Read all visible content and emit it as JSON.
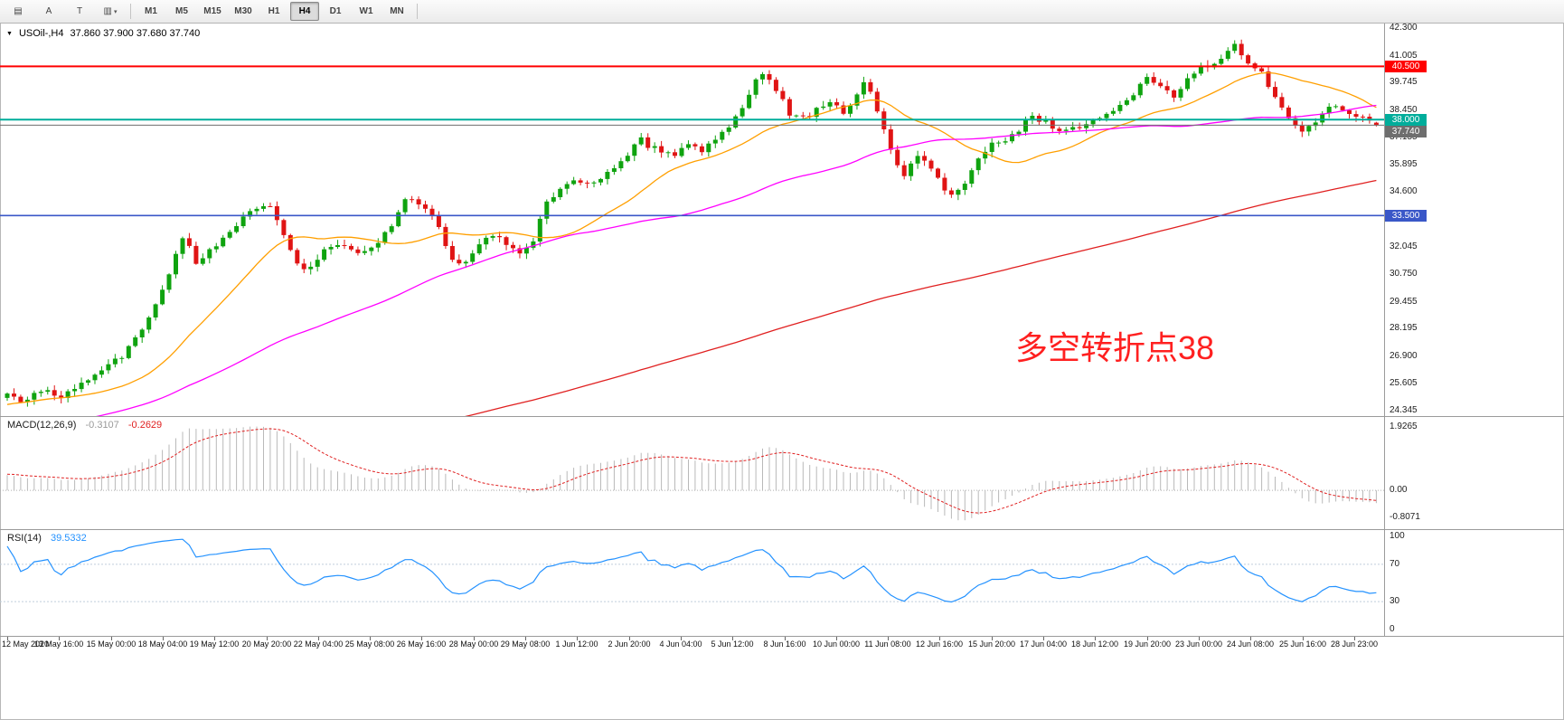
{
  "toolbar": {
    "left_buttons": [
      {
        "name": "chart-shift-icon-button",
        "glyph": "▤"
      },
      {
        "name": "auto-scroll-button",
        "label": "A"
      },
      {
        "name": "text-tool-button",
        "label": "T"
      },
      {
        "name": "chart-style-dropdown-button",
        "glyph": "▥",
        "arrow": "▾"
      }
    ],
    "timeframes": [
      {
        "label": "M1"
      },
      {
        "label": "M5"
      },
      {
        "label": "M15"
      },
      {
        "label": "M30"
      },
      {
        "label": "H1"
      },
      {
        "label": "H4",
        "active": true
      },
      {
        "label": "D1"
      },
      {
        "label": "W1"
      },
      {
        "label": "MN"
      }
    ]
  },
  "chart": {
    "collapse_glyph": "▼",
    "symbol_label": "USOil-,H4",
    "quote_text": "37.860 37.900 37.680 37.740",
    "annotation": {
      "text": "多空转折点38",
      "color": "#ff2020"
    },
    "hlines": [
      {
        "price": 40.5,
        "label": "40.500",
        "color": "#ff0000",
        "width": 2
      },
      {
        "price": 38.0,
        "label": "38.000",
        "color": "#00ad9b",
        "width": 2
      },
      {
        "price": 33.5,
        "label": "33.500",
        "color": "#3a57c8",
        "width": 1.6
      }
    ],
    "current_price": {
      "price": 37.74,
      "label": "37.740",
      "color": "#6e6e6e"
    },
    "y_axis": {
      "labels": [
        "42.300",
        "41.005",
        "39.745",
        "38.450",
        "37.155",
        "35.895",
        "34.600",
        "33.340",
        "32.045",
        "30.750",
        "29.455",
        "28.195",
        "26.900",
        "25.605",
        "24.345"
      ]
    },
    "x_axis": {
      "labels": [
        "12 May 2020",
        "13 May 16:00",
        "15 May 00:00",
        "18 May 04:00",
        "19 May 12:00",
        "20 May 20:00",
        "22 May 04:00",
        "25 May 08:00",
        "26 May 16:00",
        "28 May 00:00",
        "29 May 08:00",
        "1 Jun 12:00",
        "2 Jun 20:00",
        "4 Jun 04:00",
        "5 Jun 12:00",
        "8 Jun 16:00",
        "10 Jun 00:00",
        "11 Jun 08:00",
        "12 Jun 16:00",
        "15 Jun 20:00",
        "17 Jun 04:00",
        "18 Jun 12:00",
        "19 Jun 20:00",
        "23 Jun 00:00",
        "24 Jun 08:00",
        "25 Jun 16:00",
        "28 Jun 23:00"
      ]
    },
    "colors": {
      "up": "#0fa30f",
      "down": "#e01414",
      "hist": "#b9b9b9",
      "signal": "#e02020",
      "rsi": "#2492ff"
    }
  },
  "indicators": {
    "macd": {
      "label": "MACD(12,26,9)",
      "value_main": "-0.3107",
      "value_signal": "-0.2629",
      "axis_labels": [
        "1.9265",
        "0.00",
        "-0.8071"
      ],
      "params": {
        "fast": 12,
        "slow": 26,
        "signal": 9
      }
    },
    "rsi": {
      "label": "RSI(14)",
      "value": "39.5332",
      "period": 14,
      "axis_labels": [
        "100",
        "70",
        "30",
        "0"
      ],
      "levels": [
        70,
        30
      ]
    }
  },
  "chart_data": {
    "type": "candlestick",
    "symbol": "USOil-",
    "timeframe": "H4",
    "title": "USOil-,H4 37.860 37.900 37.680 37.740",
    "ylim": [
      24.345,
      42.3
    ],
    "visible_bars": 204,
    "prehistory_bars": 220,
    "last_bar": {
      "open": 37.86,
      "high": 37.9,
      "low": 37.68,
      "close": 37.74
    },
    "close_anchors": [
      [
        0,
        25.1
      ],
      [
        2,
        24.65
      ],
      [
        5,
        25.3
      ],
      [
        8,
        25.05
      ],
      [
        11,
        25.6
      ],
      [
        14,
        26.3
      ],
      [
        17,
        26.9
      ],
      [
        20,
        28.2
      ],
      [
        23,
        29.9
      ],
      [
        25,
        31.6
      ],
      [
        26,
        32.55
      ],
      [
        28,
        31.35
      ],
      [
        30,
        31.85
      ],
      [
        33,
        32.7
      ],
      [
        35,
        33.45
      ],
      [
        37,
        33.85
      ],
      [
        39,
        33.95
      ],
      [
        41,
        32.6
      ],
      [
        43,
        31.15
      ],
      [
        45,
        31.0
      ],
      [
        47,
        31.9
      ],
      [
        49,
        32.1
      ],
      [
        52,
        31.65
      ],
      [
        55,
        32.25
      ],
      [
        57,
        33.1
      ],
      [
        59,
        34.25
      ],
      [
        61,
        34.05
      ],
      [
        63,
        33.6
      ],
      [
        65,
        32.2
      ],
      [
        66,
        31.4
      ],
      [
        68,
        31.25
      ],
      [
        70,
        32.2
      ],
      [
        72,
        32.65
      ],
      [
        74,
        32.1
      ],
      [
        76,
        31.75
      ],
      [
        78,
        32.3
      ],
      [
        79,
        33.3
      ],
      [
        80,
        34.1
      ],
      [
        82,
        34.8
      ],
      [
        84,
        35.15
      ],
      [
        86,
        34.9
      ],
      [
        88,
        35.3
      ],
      [
        90,
        35.85
      ],
      [
        92,
        36.25
      ],
      [
        94,
        37.25
      ],
      [
        95,
        36.8
      ],
      [
        97,
        36.5
      ],
      [
        99,
        36.3
      ],
      [
        101,
        36.85
      ],
      [
        103,
        36.6
      ],
      [
        105,
        37.15
      ],
      [
        107,
        37.6
      ],
      [
        109,
        38.5
      ],
      [
        111,
        39.85
      ],
      [
        112,
        40.25
      ],
      [
        113,
        39.9
      ],
      [
        115,
        38.9
      ],
      [
        116,
        38.25
      ],
      [
        118,
        38.05
      ],
      [
        120,
        38.45
      ],
      [
        122,
        38.85
      ],
      [
        124,
        38.35
      ],
      [
        126,
        39.1
      ],
      [
        127,
        39.75
      ],
      [
        128,
        39.3
      ],
      [
        129,
        38.5
      ],
      [
        131,
        36.7
      ],
      [
        132,
        35.9
      ],
      [
        133,
        35.3
      ],
      [
        135,
        36.35
      ],
      [
        137,
        35.7
      ],
      [
        139,
        34.75
      ],
      [
        140,
        34.35
      ],
      [
        142,
        35.05
      ],
      [
        144,
        36.15
      ],
      [
        146,
        36.85
      ],
      [
        148,
        37.1
      ],
      [
        150,
        37.55
      ],
      [
        152,
        38.2
      ],
      [
        154,
        37.85
      ],
      [
        157,
        37.4
      ],
      [
        160,
        37.85
      ],
      [
        163,
        38.25
      ],
      [
        165,
        38.75
      ],
      [
        167,
        39.25
      ],
      [
        169,
        39.9
      ],
      [
        171,
        39.45
      ],
      [
        173,
        39.15
      ],
      [
        175,
        39.95
      ],
      [
        177,
        40.45
      ],
      [
        179,
        40.7
      ],
      [
        181,
        41.25
      ],
      [
        182,
        41.5
      ],
      [
        183,
        41.1
      ],
      [
        184,
        40.55
      ],
      [
        186,
        40.3
      ],
      [
        188,
        39.0
      ],
      [
        190,
        37.95
      ],
      [
        192,
        37.35
      ],
      [
        194,
        37.9
      ],
      [
        196,
        38.65
      ],
      [
        198,
        38.45
      ],
      [
        200,
        38.1
      ],
      [
        202,
        37.95
      ],
      [
        203,
        37.74
      ]
    ],
    "prehistory_anchors": [
      [
        0,
        19.0
      ],
      [
        30,
        16.0
      ],
      [
        60,
        14.5
      ],
      [
        90,
        16.5
      ],
      [
        120,
        18.5
      ],
      [
        150,
        20.5
      ],
      [
        180,
        22.5
      ],
      [
        200,
        24.0
      ],
      [
        212,
        24.8
      ],
      [
        219,
        25.0
      ]
    ],
    "overlays": [
      {
        "type": "sma",
        "period": 20,
        "color": "#ff9f00"
      },
      {
        "type": "sma",
        "period": 60,
        "color": "#ff00ff"
      },
      {
        "type": "sma",
        "period": 200,
        "color": "#e02020"
      }
    ],
    "hline_prices": [
      40.5,
      38.0,
      33.5
    ],
    "current_price": 37.74
  }
}
